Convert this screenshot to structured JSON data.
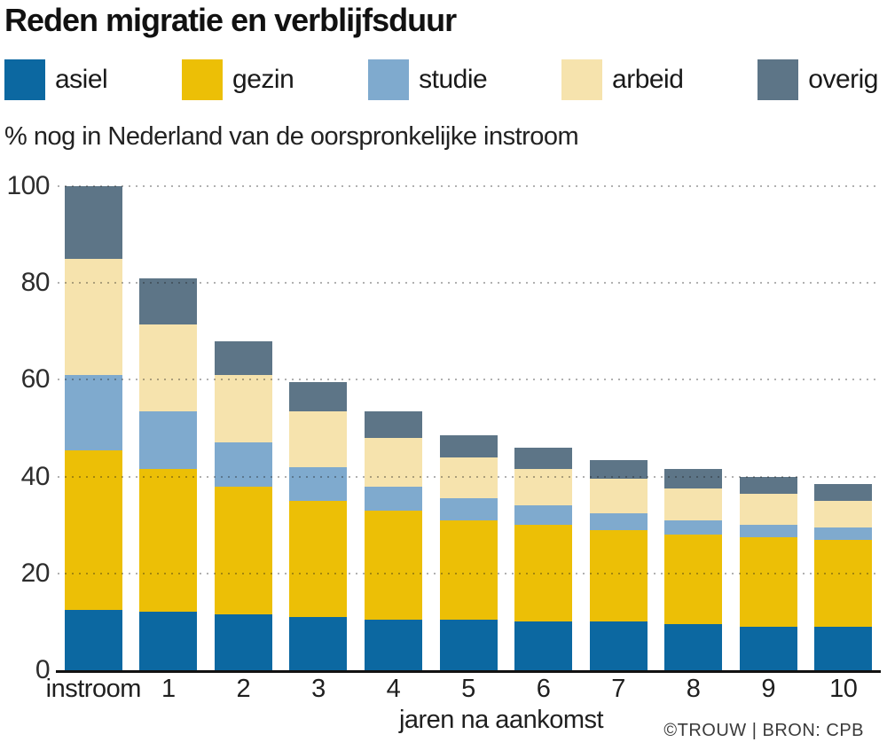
{
  "chart_data": {
    "type": "bar",
    "stacked": true,
    "title": "Reden migratie en verblijfsduur",
    "subtitle": "% nog in Nederland van de oorspronkelijke instroom",
    "xlabel": "jaren na aankomst",
    "ylabel": "",
    "ylim": [
      0,
      100
    ],
    "yticks": [
      0,
      20,
      40,
      60,
      80,
      100
    ],
    "grid": "dotted-horizontal",
    "legend_position": "top",
    "categories": [
      "instroom",
      "1",
      "2",
      "3",
      "4",
      "5",
      "6",
      "7",
      "8",
      "9",
      "10"
    ],
    "series": [
      {
        "name": "asiel",
        "color": "#0c68a1",
        "values": [
          12.5,
          12,
          11.5,
          11,
          10.5,
          10.5,
          10,
          10,
          9.5,
          9,
          9
        ]
      },
      {
        "name": "gezin",
        "color": "#ecbf06",
        "values": [
          33,
          29.5,
          26.5,
          24,
          22.5,
          20.5,
          20,
          19,
          18.5,
          18.5,
          18
        ]
      },
      {
        "name": "studie",
        "color": "#7faace",
        "values": [
          15.5,
          12,
          9,
          7,
          5,
          4.5,
          4,
          3.5,
          3,
          2.5,
          2.5
        ]
      },
      {
        "name": "arbeid",
        "color": "#f6e3ad",
        "values": [
          24,
          18,
          14,
          11.5,
          10,
          8.5,
          7.5,
          7,
          6.5,
          6.5,
          5.5
        ]
      },
      {
        "name": "overig",
        "color": "#5d7587",
        "values": [
          15,
          9.5,
          7,
          6,
          5.5,
          4.5,
          4.5,
          4,
          4,
          3.5,
          3.5
        ]
      }
    ],
    "totals": [
      100,
      81,
      68,
      59.5,
      53.5,
      48.5,
      46,
      43.5,
      41.5,
      40,
      38.5
    ]
  },
  "footer": {
    "source": "©TROUW | BRON: CPB"
  },
  "colors": {
    "axis": "#121212",
    "gridline": "#b5b5b5",
    "text": "#1a1a1a"
  }
}
